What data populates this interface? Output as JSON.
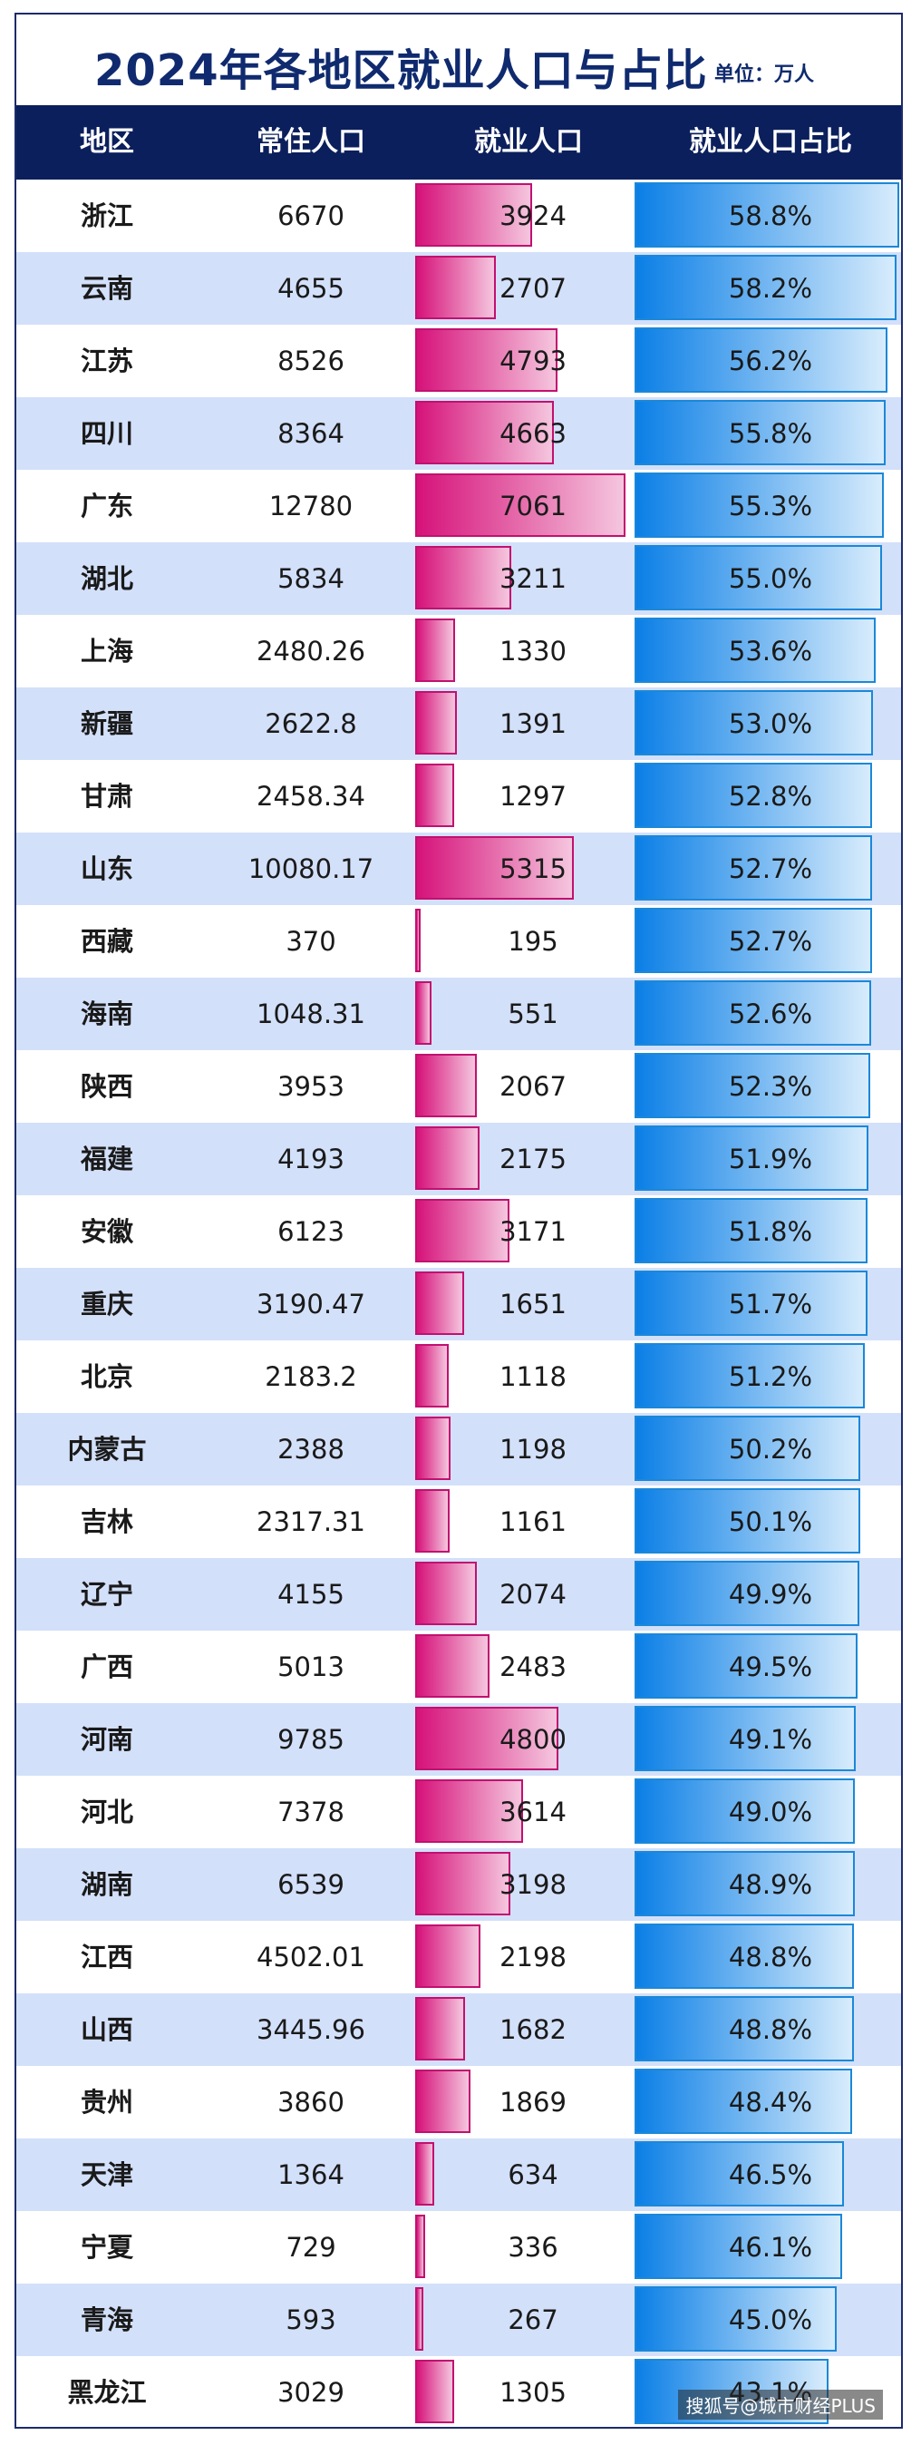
{
  "title": "2024年各地区就业人口与占比",
  "unit": "单位：万人",
  "headers": {
    "region": "地区",
    "population": "常住人口",
    "employment": "就业人口",
    "share": "就业人口占比"
  },
  "watermark": "搜狐号@城市财经PLUS",
  "colors": {
    "header_bg": "#0b1f5c",
    "title": "#0f2a6e",
    "employment_bar": "#d6127a",
    "share_bar": "#0b7fe6",
    "alt_row": "#d3e0fa"
  },
  "chart_data": {
    "type": "table",
    "columns": [
      "地区",
      "常住人口",
      "就业人口",
      "就业人口占比"
    ],
    "rows": [
      {
        "region": "浙江",
        "population": "6670",
        "employment": "3924",
        "share": "58.8%",
        "employment_value": 3924,
        "share_value": 58.8
      },
      {
        "region": "云南",
        "population": "4655",
        "employment": "2707",
        "share": "58.2%",
        "employment_value": 2707,
        "share_value": 58.2
      },
      {
        "region": "江苏",
        "population": "8526",
        "employment": "4793",
        "share": "56.2%",
        "employment_value": 4793,
        "share_value": 56.2
      },
      {
        "region": "四川",
        "population": "8364",
        "employment": "4663",
        "share": "55.8%",
        "employment_value": 4663,
        "share_value": 55.8
      },
      {
        "region": "广东",
        "population": "12780",
        "employment": "7061",
        "share": "55.3%",
        "employment_value": 7061,
        "share_value": 55.3
      },
      {
        "region": "湖北",
        "population": "5834",
        "employment": "3211",
        "share": "55.0%",
        "employment_value": 3211,
        "share_value": 55.0
      },
      {
        "region": "上海",
        "population": "2480.26",
        "employment": "1330",
        "share": "53.6%",
        "employment_value": 1330,
        "share_value": 53.6
      },
      {
        "region": "新疆",
        "population": "2622.8",
        "employment": "1391",
        "share": "53.0%",
        "employment_value": 1391,
        "share_value": 53.0
      },
      {
        "region": "甘肃",
        "population": "2458.34",
        "employment": "1297",
        "share": "52.8%",
        "employment_value": 1297,
        "share_value": 52.8
      },
      {
        "region": "山东",
        "population": "10080.17",
        "employment": "5315",
        "share": "52.7%",
        "employment_value": 5315,
        "share_value": 52.7
      },
      {
        "region": "西藏",
        "population": "370",
        "employment": "195",
        "share": "52.7%",
        "employment_value": 195,
        "share_value": 52.7
      },
      {
        "region": "海南",
        "population": "1048.31",
        "employment": "551",
        "share": "52.6%",
        "employment_value": 551,
        "share_value": 52.6
      },
      {
        "region": "陕西",
        "population": "3953",
        "employment": "2067",
        "share": "52.3%",
        "employment_value": 2067,
        "share_value": 52.3
      },
      {
        "region": "福建",
        "population": "4193",
        "employment": "2175",
        "share": "51.9%",
        "employment_value": 2175,
        "share_value": 51.9
      },
      {
        "region": "安徽",
        "population": "6123",
        "employment": "3171",
        "share": "51.8%",
        "employment_value": 3171,
        "share_value": 51.8
      },
      {
        "region": "重庆",
        "population": "3190.47",
        "employment": "1651",
        "share": "51.7%",
        "employment_value": 1651,
        "share_value": 51.7
      },
      {
        "region": "北京",
        "population": "2183.2",
        "employment": "1118",
        "share": "51.2%",
        "employment_value": 1118,
        "share_value": 51.2
      },
      {
        "region": "内蒙古",
        "population": "2388",
        "employment": "1198",
        "share": "50.2%",
        "employment_value": 1198,
        "share_value": 50.2
      },
      {
        "region": "吉林",
        "population": "2317.31",
        "employment": "1161",
        "share": "50.1%",
        "employment_value": 1161,
        "share_value": 50.1
      },
      {
        "region": "辽宁",
        "population": "4155",
        "employment": "2074",
        "share": "49.9%",
        "employment_value": 2074,
        "share_value": 49.9
      },
      {
        "region": "广西",
        "population": "5013",
        "employment": "2483",
        "share": "49.5%",
        "employment_value": 2483,
        "share_value": 49.5
      },
      {
        "region": "河南",
        "population": "9785",
        "employment": "4800",
        "share": "49.1%",
        "employment_value": 4800,
        "share_value": 49.1
      },
      {
        "region": "河北",
        "population": "7378",
        "employment": "3614",
        "share": "49.0%",
        "employment_value": 3614,
        "share_value": 49.0
      },
      {
        "region": "湖南",
        "population": "6539",
        "employment": "3198",
        "share": "48.9%",
        "employment_value": 3198,
        "share_value": 48.9
      },
      {
        "region": "江西",
        "population": "4502.01",
        "employment": "2198",
        "share": "48.8%",
        "employment_value": 2198,
        "share_value": 48.8
      },
      {
        "region": "山西",
        "population": "3445.96",
        "employment": "1682",
        "share": "48.8%",
        "employment_value": 1682,
        "share_value": 48.8
      },
      {
        "region": "贵州",
        "population": "3860",
        "employment": "1869",
        "share": "48.4%",
        "employment_value": 1869,
        "share_value": 48.4
      },
      {
        "region": "天津",
        "population": "1364",
        "employment": "634",
        "share": "46.5%",
        "employment_value": 634,
        "share_value": 46.5
      },
      {
        "region": "宁夏",
        "population": "729",
        "employment": "336",
        "share": "46.1%",
        "employment_value": 336,
        "share_value": 46.1
      },
      {
        "region": "青海",
        "population": "593",
        "employment": "267",
        "share": "45.0%",
        "employment_value": 267,
        "share_value": 45.0
      },
      {
        "region": "黑龙江",
        "population": "3029",
        "employment": "1305",
        "share": "43.1%",
        "employment_value": 1305,
        "share_value": 43.1
      }
    ]
  }
}
